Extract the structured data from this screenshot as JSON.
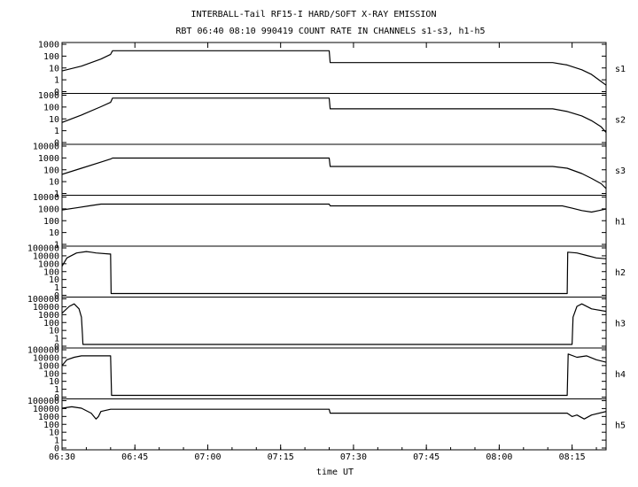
{
  "chart_data": {
    "type": "line",
    "title": "INTERBALL-Tail RF15-I HARD/SOFT X-RAY EMISSION",
    "subtitle": "RBT 06:40 08:10 990419  COUNT RATE IN CHANNELS s1-s3, h1-h5",
    "xlabel": "time UT",
    "x_ticks": [
      "06:30",
      "06:45",
      "07:00",
      "07:15",
      "07:30",
      "07:45",
      "08:00",
      "08:15"
    ],
    "x_tick_minutes": [
      390,
      405,
      420,
      435,
      450,
      465,
      480,
      495
    ],
    "xlim_minutes": [
      390,
      502
    ],
    "y_scale": "log",
    "grid": false,
    "panels": [
      {
        "name": "s1",
        "y_ticks": [
          "1000",
          "100",
          "10",
          "1",
          "0"
        ],
        "y_tick_values": [
          1000,
          100,
          10,
          1,
          0
        ],
        "ylim": [
          0.2,
          1000
        ],
        "series": [
          {
            "x": 390,
            "y": 8
          },
          {
            "x": 394,
            "y": 20
          },
          {
            "x": 398,
            "y": 80
          },
          {
            "x": 400,
            "y": 200
          },
          {
            "x": 400.4,
            "y": 400
          },
          {
            "x": 445,
            "y": 400
          },
          {
            "x": 445.2,
            "y": 40
          },
          {
            "x": 491,
            "y": 40
          },
          {
            "x": 494,
            "y": 25
          },
          {
            "x": 497,
            "y": 10
          },
          {
            "x": 499,
            "y": 4
          },
          {
            "x": 501,
            "y": 1
          },
          {
            "x": 502,
            "y": 0.5
          }
        ]
      },
      {
        "name": "s2",
        "y_ticks": [
          "1000",
          "100",
          "10",
          "1",
          "0"
        ],
        "y_tick_values": [
          1000,
          100,
          10,
          1,
          0
        ],
        "ylim": [
          0.2,
          1000
        ],
        "series": [
          {
            "x": 390,
            "y": 7
          },
          {
            "x": 394,
            "y": 30
          },
          {
            "x": 398,
            "y": 150
          },
          {
            "x": 400,
            "y": 350
          },
          {
            "x": 400.4,
            "y": 800
          },
          {
            "x": 445,
            "y": 800
          },
          {
            "x": 445.2,
            "y": 100
          },
          {
            "x": 491,
            "y": 100
          },
          {
            "x": 494,
            "y": 60
          },
          {
            "x": 497,
            "y": 25
          },
          {
            "x": 499,
            "y": 10
          },
          {
            "x": 501,
            "y": 3
          },
          {
            "x": 502,
            "y": 1
          }
        ]
      },
      {
        "name": "s3",
        "y_ticks": [
          "10000",
          "1000",
          "100",
          "10",
          "1"
        ],
        "y_tick_values": [
          10000,
          1000,
          100,
          10,
          1
        ],
        "ylim": [
          0.5,
          10000
        ],
        "series": [
          {
            "x": 390,
            "y": 25
          },
          {
            "x": 394,
            "y": 100
          },
          {
            "x": 398,
            "y": 400
          },
          {
            "x": 400,
            "y": 800
          },
          {
            "x": 400.4,
            "y": 1000
          },
          {
            "x": 445,
            "y": 1000
          },
          {
            "x": 445.2,
            "y": 150
          },
          {
            "x": 491,
            "y": 150
          },
          {
            "x": 494,
            "y": 100
          },
          {
            "x": 497,
            "y": 30
          },
          {
            "x": 499,
            "y": 10
          },
          {
            "x": 501,
            "y": 3
          },
          {
            "x": 502,
            "y": 1
          }
        ]
      },
      {
        "name": "h1",
        "y_ticks": [
          "10000",
          "1000",
          "100",
          "10",
          "1"
        ],
        "y_tick_values": [
          10000,
          1000,
          100,
          10,
          1
        ],
        "ylim": [
          0.5,
          10000
        ],
        "series": [
          {
            "x": 390,
            "y": 800
          },
          {
            "x": 393,
            "y": 1300
          },
          {
            "x": 396,
            "y": 2200
          },
          {
            "x": 398,
            "y": 3000
          },
          {
            "x": 445,
            "y": 3000
          },
          {
            "x": 445.2,
            "y": 2000
          },
          {
            "x": 493,
            "y": 2000
          },
          {
            "x": 495,
            "y": 1200
          },
          {
            "x": 497,
            "y": 700
          },
          {
            "x": 499,
            "y": 500
          },
          {
            "x": 500.5,
            "y": 700
          },
          {
            "x": 502,
            "y": 1000
          }
        ]
      },
      {
        "name": "h2",
        "y_ticks": [
          "100000",
          "10000",
          "1000",
          "100",
          "10",
          "1",
          "0"
        ],
        "y_tick_values": [
          100000,
          10000,
          1000,
          100,
          10,
          1,
          0
        ],
        "ylim": [
          0.5,
          100000
        ],
        "series": [
          {
            "x": 390,
            "y": 1000
          },
          {
            "x": 391,
            "y": 10000
          },
          {
            "x": 393,
            "y": 40000
          },
          {
            "x": 395,
            "y": 60000
          },
          {
            "x": 396,
            "y": 50000
          },
          {
            "x": 397,
            "y": 40000
          },
          {
            "x": 399.8,
            "y": 30000
          },
          {
            "x": 400,
            "y": 30000
          },
          {
            "x": 400.1,
            "y": 0.5
          },
          {
            "x": 494,
            "y": 0.5
          },
          {
            "x": 494.1,
            "y": 50000
          },
          {
            "x": 496,
            "y": 40000
          },
          {
            "x": 498,
            "y": 20000
          },
          {
            "x": 500,
            "y": 10000
          },
          {
            "x": 502,
            "y": 8000
          }
        ]
      },
      {
        "name": "h3",
        "y_ticks": [
          "100000",
          "10000",
          "1000",
          "100",
          "10",
          "1",
          "0"
        ],
        "y_tick_values": [
          100000,
          10000,
          1000,
          100,
          10,
          1,
          0
        ],
        "ylim": [
          0.5,
          100000
        ],
        "series": [
          {
            "x": 390,
            "y": 3000
          },
          {
            "x": 391.5,
            "y": 20000
          },
          {
            "x": 392.5,
            "y": 40000
          },
          {
            "x": 393.5,
            "y": 10000
          },
          {
            "x": 394,
            "y": 1000
          },
          {
            "x": 394.2,
            "y": 10
          },
          {
            "x": 394.3,
            "y": 0.5
          },
          {
            "x": 495,
            "y": 0.5
          },
          {
            "x": 495.2,
            "y": 1000
          },
          {
            "x": 496,
            "y": 20000
          },
          {
            "x": 497,
            "y": 40000
          },
          {
            "x": 499,
            "y": 10000
          },
          {
            "x": 502,
            "y": 5000
          }
        ]
      },
      {
        "name": "h4",
        "y_ticks": [
          "100000",
          "10000",
          "1000",
          "100",
          "10",
          "1",
          "0"
        ],
        "y_tick_values": [
          100000,
          10000,
          1000,
          100,
          10,
          1,
          0
        ],
        "ylim": [
          0.5,
          100000
        ],
        "series": [
          {
            "x": 390,
            "y": 2000
          },
          {
            "x": 391,
            "y": 10000
          },
          {
            "x": 392.5,
            "y": 20000
          },
          {
            "x": 394,
            "y": 30000
          },
          {
            "x": 400,
            "y": 30000
          },
          {
            "x": 400.2,
            "y": 0.5
          },
          {
            "x": 494,
            "y": 0.5
          },
          {
            "x": 494.2,
            "y": 50000
          },
          {
            "x": 496,
            "y": 20000
          },
          {
            "x": 498,
            "y": 30000
          },
          {
            "x": 500,
            "y": 10000
          },
          {
            "x": 502,
            "y": 5000
          }
        ]
      },
      {
        "name": "h5",
        "y_ticks": [
          "100000",
          "10000",
          "1000",
          "100",
          "10",
          "1",
          "0"
        ],
        "y_tick_values": [
          100000,
          10000,
          1000,
          100,
          10,
          1,
          0
        ],
        "ylim": [
          0.5,
          100000
        ],
        "series": [
          {
            "x": 390,
            "y": 20000
          },
          {
            "x": 392,
            "y": 30000
          },
          {
            "x": 394,
            "y": 20000
          },
          {
            "x": 396,
            "y": 5000
          },
          {
            "x": 397,
            "y": 1000
          },
          {
            "x": 397.5,
            "y": 2000
          },
          {
            "x": 398,
            "y": 8000
          },
          {
            "x": 400,
            "y": 15000
          },
          {
            "x": 445,
            "y": 15000
          },
          {
            "x": 445.2,
            "y": 5000
          },
          {
            "x": 494,
            "y": 5000
          },
          {
            "x": 495,
            "y": 2000
          },
          {
            "x": 496,
            "y": 3000
          },
          {
            "x": 497.5,
            "y": 1000
          },
          {
            "x": 499,
            "y": 3000
          },
          {
            "x": 502,
            "y": 8000
          }
        ]
      }
    ]
  }
}
